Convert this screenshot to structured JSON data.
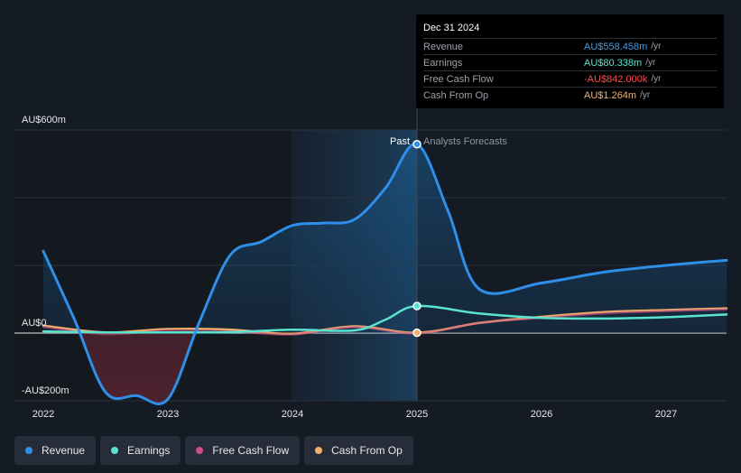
{
  "tooltip": {
    "date": "Dec 31 2024",
    "rows": [
      {
        "label": "Revenue",
        "value": "AU$558.458m",
        "unit": "/yr",
        "color": "#3e9be9"
      },
      {
        "label": "Earnings",
        "value": "AU$80.338m",
        "unit": "/yr",
        "color": "#5ae3cf"
      },
      {
        "label": "Free Cash Flow",
        "value": "-AU$842.000k",
        "unit": "/yr",
        "color": "#ff4d52"
      },
      {
        "label": "Cash From Op",
        "value": "AU$1.264m",
        "unit": "/yr",
        "color": "#f2b26c"
      }
    ]
  },
  "legend": [
    {
      "label": "Revenue",
      "color": "#2f8fe8"
    },
    {
      "label": "Earnings",
      "color": "#5ae3cf"
    },
    {
      "label": "Free Cash Flow",
      "color": "#c94f86"
    },
    {
      "label": "Cash From Op",
      "color": "#f2b26c"
    }
  ],
  "chart_data": {
    "type": "line",
    "y_unit": "AU$ millions",
    "ylim": [
      -200,
      600
    ],
    "y_tick_labels": [
      {
        "value": 600,
        "label": "AU$600m"
      },
      {
        "value": 0,
        "label": "AU$0"
      },
      {
        "value": -200,
        "label": "-AU$200m"
      }
    ],
    "gridlines": [
      600,
      400,
      200,
      0,
      -200
    ],
    "xlim": [
      2021.8,
      2027.5
    ],
    "x_ticks": [
      2022,
      2023,
      2024,
      2025,
      2026,
      2027
    ],
    "x_tick_labels": [
      "2022",
      "2023",
      "2024",
      "2025",
      "2026",
      "2027"
    ],
    "past_label": "Past",
    "forecast_label": "Analysts Forecasts",
    "divider_x": 2025.0,
    "highlight_band_start": 2024.0,
    "series": [
      {
        "name": "Revenue",
        "color": "#2f8fe8",
        "points": [
          [
            2022.0,
            242
          ],
          [
            2022.25,
            40
          ],
          [
            2022.5,
            -175
          ],
          [
            2022.75,
            -185
          ],
          [
            2023.0,
            -195
          ],
          [
            2023.25,
            30
          ],
          [
            2023.5,
            230
          ],
          [
            2023.75,
            270
          ],
          [
            2024.0,
            318
          ],
          [
            2024.25,
            325
          ],
          [
            2024.5,
            336
          ],
          [
            2024.75,
            430
          ],
          [
            2025.0,
            558
          ],
          [
            2025.25,
            360
          ],
          [
            2025.5,
            130
          ],
          [
            2026.0,
            148
          ],
          [
            2026.5,
            180
          ],
          [
            2027.0,
            200
          ],
          [
            2027.5,
            215
          ]
        ]
      },
      {
        "name": "Earnings",
        "color": "#5ae3cf",
        "points": [
          [
            2022.0,
            5
          ],
          [
            2022.5,
            2
          ],
          [
            2023.0,
            2
          ],
          [
            2023.5,
            3
          ],
          [
            2024.0,
            10
          ],
          [
            2024.5,
            8
          ],
          [
            2024.75,
            40
          ],
          [
            2025.0,
            80
          ],
          [
            2025.5,
            58
          ],
          [
            2026.0,
            45
          ],
          [
            2026.5,
            43
          ],
          [
            2027.0,
            47
          ],
          [
            2027.5,
            55
          ]
        ]
      },
      {
        "name": "Free Cash Flow",
        "color": "#c94f86",
        "points": [
          [
            2022.0,
            18
          ],
          [
            2022.5,
            -3
          ],
          [
            2023.0,
            8
          ],
          [
            2023.5,
            5
          ],
          [
            2024.0,
            -4
          ],
          [
            2024.5,
            18
          ],
          [
            2025.0,
            -1
          ],
          [
            2025.5,
            30
          ],
          [
            2026.0,
            45
          ],
          [
            2026.5,
            58
          ],
          [
            2027.0,
            65
          ],
          [
            2027.5,
            70
          ]
        ]
      },
      {
        "name": "Cash From Op",
        "color": "#f2b26c",
        "points": [
          [
            2022.0,
            22
          ],
          [
            2022.5,
            2
          ],
          [
            2023.0,
            12
          ],
          [
            2023.5,
            10
          ],
          [
            2024.0,
            -2
          ],
          [
            2024.5,
            20
          ],
          [
            2025.0,
            1
          ],
          [
            2025.5,
            30
          ],
          [
            2026.0,
            48
          ],
          [
            2026.5,
            62
          ],
          [
            2027.0,
            68
          ],
          [
            2027.5,
            73
          ]
        ]
      }
    ]
  }
}
